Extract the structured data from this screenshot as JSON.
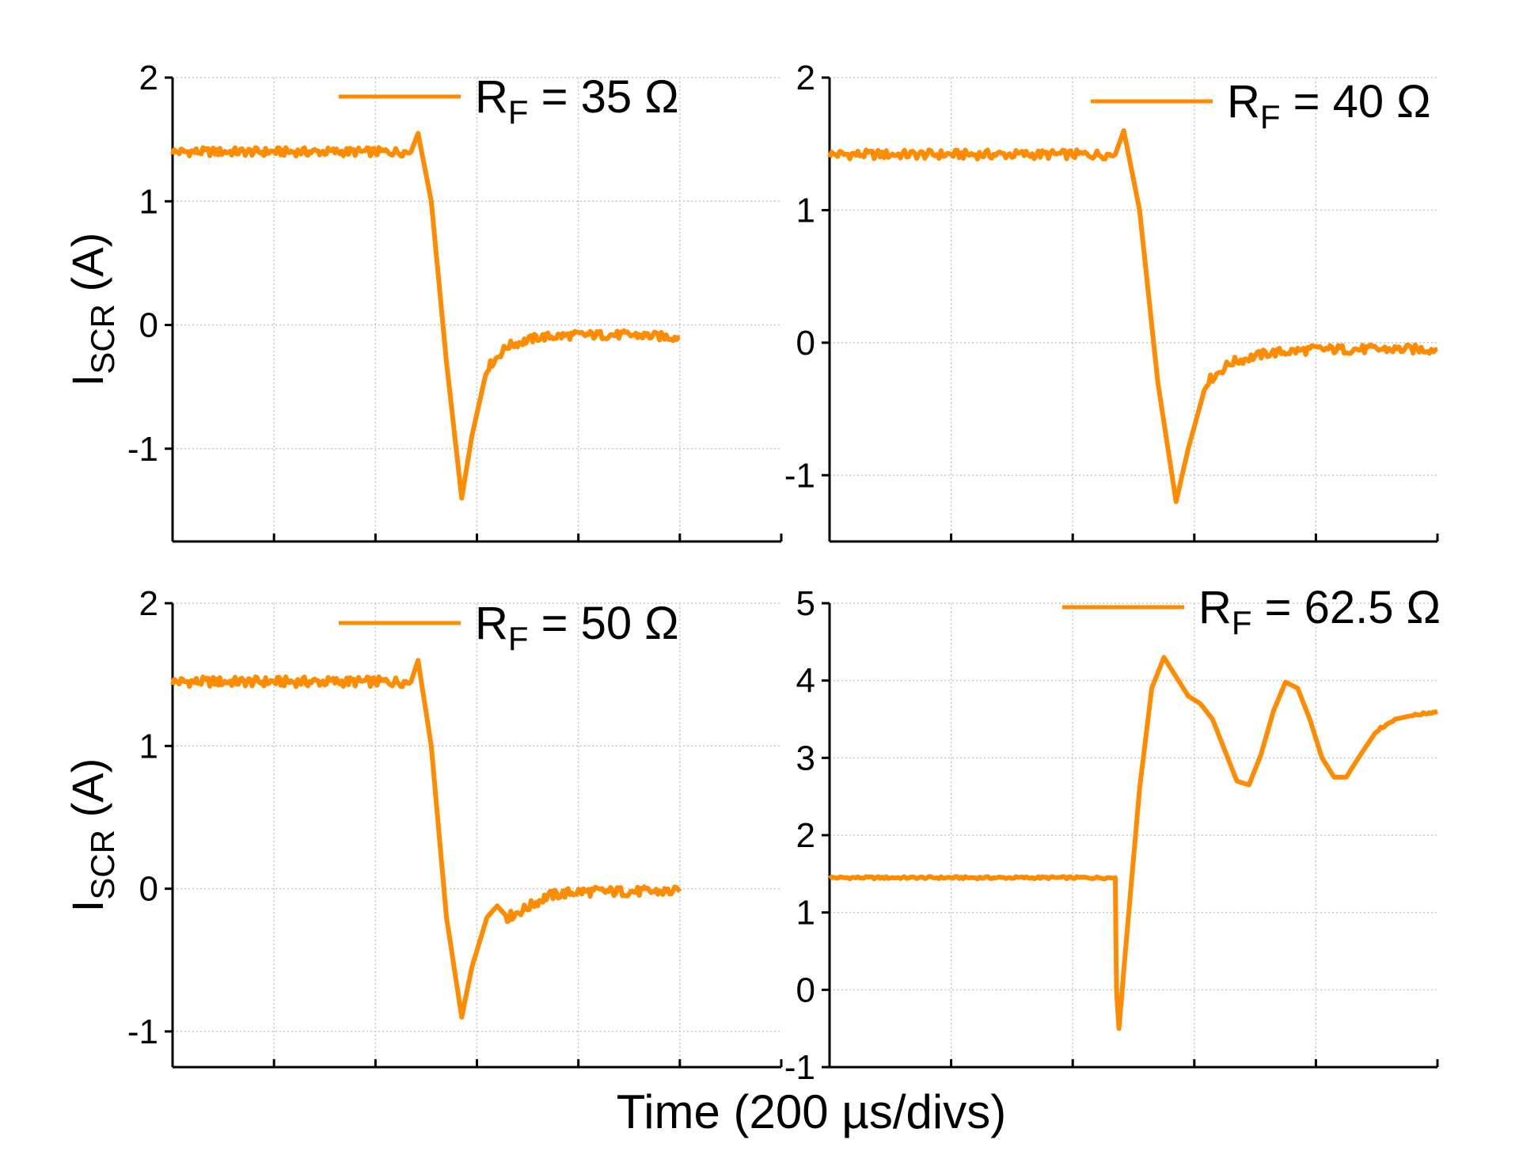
{
  "figure": {
    "xlabel": "Time (200 µs/divs)"
  },
  "chart_data": [
    {
      "type": "line",
      "id": "p1",
      "ylabel": {
        "main": "I",
        "sub": "SCR",
        "unit": " (A)"
      },
      "legend": {
        "label": "R",
        "sub": "F",
        "value": " = 35 Ω",
        "placement": "top-right"
      },
      "xlabel": "Time (200 µs/divs)",
      "xlim": [
        0,
        6
      ],
      "ylim": [
        -1.75,
        2
      ],
      "yticks": [
        -1,
        0,
        1,
        2
      ],
      "xticks": [
        1,
        2,
        3,
        4,
        5
      ],
      "grid": true,
      "color": "#ff8c00",
      "series": [
        {
          "name": "R_F = 35 Ω",
          "x": [
            0.0,
            2.35,
            2.42,
            2.55,
            2.7,
            2.85,
            2.95,
            3.1,
            3.3,
            3.6,
            4.0,
            4.5,
            5.0
          ],
          "y": [
            1.4,
            1.4,
            1.55,
            1.0,
            -0.3,
            -1.4,
            -0.9,
            -0.35,
            -0.17,
            -0.1,
            -0.08,
            -0.08,
            -0.1
          ]
        }
      ]
    },
    {
      "type": "line",
      "id": "p2",
      "legend": {
        "label": "R",
        "sub": "F",
        "value": " = 40 Ω",
        "placement": "top-right"
      },
      "xlabel": "Time (200 µs/divs)",
      "xlim": [
        0,
        5
      ],
      "ylim": [
        -1.5,
        2
      ],
      "yticks": [
        -1,
        0,
        1,
        2
      ],
      "xticks": [
        1,
        2,
        3,
        4
      ],
      "grid": true,
      "color": "#ff8c00",
      "series": [
        {
          "name": "R_F = 40 Ω",
          "x": [
            0.0,
            2.35,
            2.42,
            2.55,
            2.7,
            2.85,
            2.95,
            3.1,
            3.3,
            3.6,
            4.0,
            4.5,
            5.0
          ],
          "y": [
            1.42,
            1.42,
            1.6,
            1.0,
            -0.3,
            -1.2,
            -0.8,
            -0.3,
            -0.15,
            -0.08,
            -0.05,
            -0.05,
            -0.05
          ]
        }
      ]
    },
    {
      "type": "line",
      "id": "p3",
      "ylabel": {
        "main": "I",
        "sub": "SCR",
        "unit": " (A)"
      },
      "legend": {
        "label": "R",
        "sub": "F",
        "value": " = 50 Ω",
        "placement": "top-right"
      },
      "xlabel": "Time (200 µs/divs)",
      "xlim": [
        0,
        6
      ],
      "ylim": [
        -1.25,
        2
      ],
      "yticks": [
        -1,
        0,
        1,
        2
      ],
      "xticks": [
        1,
        2,
        3,
        4,
        5
      ],
      "grid": true,
      "color": "#ff8c00",
      "series": [
        {
          "name": "R_F = 50 Ω",
          "x": [
            0.0,
            2.35,
            2.42,
            2.55,
            2.7,
            2.85,
            2.95,
            3.1,
            3.2,
            3.3,
            3.45,
            3.7,
            4.0,
            4.5,
            5.0
          ],
          "y": [
            1.45,
            1.45,
            1.6,
            1.0,
            -0.2,
            -0.9,
            -0.55,
            -0.2,
            -0.12,
            -0.2,
            -0.15,
            -0.05,
            -0.02,
            -0.02,
            -0.02
          ]
        }
      ]
    },
    {
      "type": "line",
      "id": "p4",
      "legend": {
        "label": "R",
        "sub": "F",
        "value": " = 62.5 Ω",
        "placement": "top-right"
      },
      "xlabel": "Time (200 µs/divs)",
      "xlim": [
        0,
        5
      ],
      "ylim": [
        -1,
        5
      ],
      "yticks": [
        -1,
        0,
        1,
        2,
        3,
        4,
        5
      ],
      "xticks": [
        1,
        2,
        3,
        4
      ],
      "grid": true,
      "color": "#ff8c00",
      "series": [
        {
          "name": "R_F = 62.5 Ω",
          "x": [
            0.0,
            2.35,
            2.36,
            2.38,
            2.45,
            2.55,
            2.65,
            2.75,
            2.85,
            2.95,
            3.05,
            3.15,
            3.25,
            3.35,
            3.45,
            3.55,
            3.65,
            3.75,
            3.85,
            3.95,
            4.05,
            4.15,
            4.25,
            4.35,
            4.5,
            4.65,
            4.8,
            5.0
          ],
          "y": [
            1.45,
            1.45,
            0.0,
            -0.5,
            0.8,
            2.6,
            3.9,
            4.3,
            4.05,
            3.8,
            3.7,
            3.5,
            3.1,
            2.7,
            2.65,
            3.05,
            3.6,
            3.98,
            3.9,
            3.5,
            3.0,
            2.75,
            2.75,
            3.0,
            3.35,
            3.5,
            3.55,
            3.6
          ]
        }
      ]
    }
  ]
}
